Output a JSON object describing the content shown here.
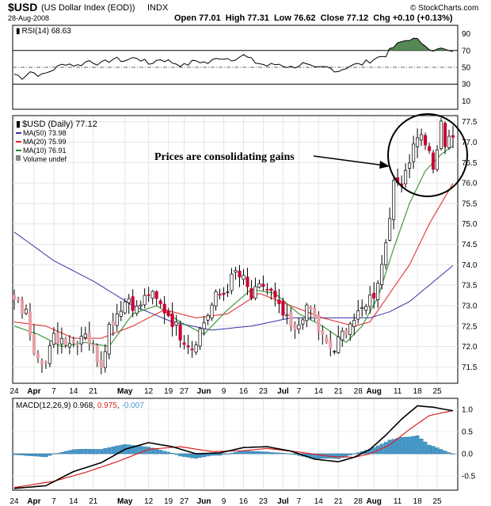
{
  "header": {
    "symbol": "$USD",
    "name": "(US Dollar Index (EOD))",
    "exchange": "INDX",
    "date": "28-Aug-2008",
    "quote": "Open 77.01  High 77.31  Low 76.62  Close 77.12  Chg +0.10 (+0.13%)",
    "credit": "© StockCharts.com"
  },
  "rsi_panel": {
    "label": "RSI(14) 68.63",
    "ticks": [
      90,
      70,
      50,
      30,
      10
    ],
    "ylim": [
      0,
      100
    ]
  },
  "price_panel": {
    "legend": {
      "title": "$USD (Daily) 77.12",
      "ma50": "MA(50) 73.98",
      "ma20": "MA(20) 75.99",
      "ma10": "MA(10) 76.91",
      "volume": "Volume undef"
    },
    "annotation": "Prices are consolidating gains",
    "ticks": [
      77.5,
      77.0,
      76.5,
      76.0,
      75.5,
      75.0,
      74.5,
      74.0,
      73.5,
      73.0,
      72.5,
      72.0,
      71.5
    ],
    "ylim": [
      71.1,
      77.65
    ]
  },
  "macd_panel": {
    "label_prefix": "MACD(12,26,9)",
    "macd_value": "0.968",
    "signal_value": "0.975",
    "hist_value": "-0.007",
    "ticks": [
      "1.0",
      "0.5",
      "0.0",
      "-0.5"
    ],
    "ylim": [
      -0.82,
      1.25
    ]
  },
  "x_axis": {
    "labels": [
      {
        "text": "24",
        "i": 0,
        "bold": false
      },
      {
        "text": "Apr",
        "i": 5,
        "bold": true
      },
      {
        "text": "7",
        "i": 10,
        "bold": false
      },
      {
        "text": "14",
        "i": 15,
        "bold": false
      },
      {
        "text": "21",
        "i": 20,
        "bold": false
      },
      {
        "text": "May",
        "i": 28,
        "bold": true
      },
      {
        "text": "12",
        "i": 34,
        "bold": false
      },
      {
        "text": "19",
        "i": 39,
        "bold": false
      },
      {
        "text": "27",
        "i": 43,
        "bold": false
      },
      {
        "text": "Jun",
        "i": 48,
        "bold": true
      },
      {
        "text": "9",
        "i": 53,
        "bold": false
      },
      {
        "text": "16",
        "i": 58,
        "bold": false
      },
      {
        "text": "23",
        "i": 63,
        "bold": false
      },
      {
        "text": "Jul",
        "i": 68,
        "bold": true
      },
      {
        "text": "7",
        "i": 72,
        "bold": false
      },
      {
        "text": "14",
        "i": 77,
        "bold": false
      },
      {
        "text": "21",
        "i": 82,
        "bold": false
      },
      {
        "text": "28",
        "i": 87,
        "bold": false
      },
      {
        "text": "Aug",
        "i": 91,
        "bold": true
      },
      {
        "text": "11",
        "i": 97,
        "bold": false
      },
      {
        "text": "18",
        "i": 102,
        "bold": false
      },
      {
        "text": "25",
        "i": 107,
        "bold": false
      }
    ]
  },
  "colors": {
    "up": "#ffffff",
    "down": "#cc0033",
    "down_light": "#e8a0a8",
    "ma50": "#3333aa",
    "ma20": "#dd2222",
    "ma10": "#228822",
    "macd": "#000000",
    "signal": "#dd2222",
    "hist": "#4499cc",
    "rsi_fill": "#558855"
  },
  "chart_data": {
    "type": "line",
    "title": "$USD (Daily) 77.12",
    "date_range": [
      "2008-03-24",
      "2008-08-28"
    ],
    "anchors": {
      "close": [
        [
          0,
          73.1
        ],
        [
          3,
          72.8
        ],
        [
          5,
          72.0
        ],
        [
          8,
          71.6
        ],
        [
          10,
          72.2
        ],
        [
          13,
          72.2
        ],
        [
          15,
          72.1
        ],
        [
          18,
          72.4
        ],
        [
          20,
          71.9
        ],
        [
          22,
          71.6
        ],
        [
          24,
          72.5
        ],
        [
          27,
          73.0
        ],
        [
          29,
          73.2
        ],
        [
          31,
          72.9
        ],
        [
          34,
          73.3
        ],
        [
          37,
          73.0
        ],
        [
          39,
          72.8
        ],
        [
          42,
          72.3
        ],
        [
          45,
          72.0
        ],
        [
          47,
          72.4
        ],
        [
          49,
          72.8
        ],
        [
          51,
          73.2
        ],
        [
          53,
          73.3
        ],
        [
          56,
          73.8
        ],
        [
          58,
          73.6
        ],
        [
          60,
          73.2
        ],
        [
          63,
          73.5
        ],
        [
          65,
          73.3
        ],
        [
          67,
          72.9
        ],
        [
          69,
          72.6
        ],
        [
          71,
          72.3
        ],
        [
          73,
          72.8
        ],
        [
          75,
          72.9
        ],
        [
          77,
          72.4
        ],
        [
          79,
          72.0
        ],
        [
          81,
          71.9
        ],
        [
          83,
          72.3
        ],
        [
          85,
          72.6
        ],
        [
          87,
          72.7
        ],
        [
          89,
          73.1
        ],
        [
          91,
          73.3
        ],
        [
          93,
          74.0
        ],
        [
          94,
          74.6
        ],
        [
          95,
          75.3
        ],
        [
          96,
          75.9
        ],
        [
          98,
          76.1
        ],
        [
          100,
          76.6
        ],
        [
          102,
          77.2
        ],
        [
          104,
          77.0
        ],
        [
          106,
          76.3
        ],
        [
          108,
          77.4
        ],
        [
          109,
          77.0
        ],
        [
          110,
          77.2
        ],
        [
          111,
          77.12
        ]
      ],
      "rsi": [
        [
          0,
          42
        ],
        [
          2,
          38
        ],
        [
          4,
          45
        ],
        [
          7,
          40
        ],
        [
          10,
          48
        ],
        [
          13,
          55
        ],
        [
          16,
          52
        ],
        [
          19,
          58
        ],
        [
          22,
          54
        ],
        [
          25,
          60
        ],
        [
          28,
          58
        ],
        [
          31,
          62
        ],
        [
          34,
          54
        ],
        [
          37,
          60
        ],
        [
          40,
          56
        ],
        [
          43,
          52
        ],
        [
          46,
          58
        ],
        [
          49,
          55
        ],
        [
          52,
          62
        ],
        [
          55,
          60
        ],
        [
          58,
          64
        ],
        [
          61,
          56
        ],
        [
          64,
          52
        ],
        [
          67,
          54
        ],
        [
          70,
          50
        ],
        [
          73,
          54
        ],
        [
          76,
          48
        ],
        [
          79,
          50
        ],
        [
          82,
          46
        ],
        [
          85,
          52
        ],
        [
          88,
          54
        ],
        [
          91,
          60
        ],
        [
          94,
          65
        ],
        [
          96,
          74
        ],
        [
          98,
          80
        ],
        [
          100,
          84
        ],
        [
          102,
          82
        ],
        [
          104,
          78
        ],
        [
          106,
          68
        ],
        [
          108,
          73
        ],
        [
          110,
          70
        ],
        [
          111,
          68.63
        ]
      ],
      "ma50": [
        [
          0,
          74.8
        ],
        [
          10,
          74.1
        ],
        [
          20,
          73.6
        ],
        [
          30,
          73.0
        ],
        [
          40,
          72.6
        ],
        [
          50,
          72.4
        ],
        [
          60,
          72.5
        ],
        [
          70,
          72.7
        ],
        [
          80,
          72.7
        ],
        [
          90,
          72.7
        ],
        [
          95,
          72.85
        ],
        [
          100,
          73.1
        ],
        [
          105,
          73.5
        ],
        [
          111,
          73.98
        ]
      ],
      "ma20": [
        [
          0,
          72.6
        ],
        [
          8,
          72.5
        ],
        [
          15,
          72.2
        ],
        [
          22,
          72.2
        ],
        [
          30,
          72.5
        ],
        [
          38,
          72.9
        ],
        [
          46,
          72.7
        ],
        [
          54,
          72.8
        ],
        [
          62,
          73.3
        ],
        [
          70,
          73.0
        ],
        [
          78,
          72.7
        ],
        [
          86,
          72.5
        ],
        [
          90,
          72.6
        ],
        [
          95,
          73.3
        ],
        [
          100,
          74.0
        ],
        [
          105,
          75.0
        ],
        [
          111,
          75.99
        ]
      ],
      "ma10": [
        [
          0,
          72.5
        ],
        [
          6,
          72.3
        ],
        [
          12,
          72.0
        ],
        [
          18,
          72.1
        ],
        [
          24,
          72.0
        ],
        [
          30,
          72.8
        ],
        [
          36,
          73.0
        ],
        [
          42,
          72.6
        ],
        [
          48,
          72.3
        ],
        [
          54,
          72.9
        ],
        [
          60,
          73.4
        ],
        [
          66,
          73.3
        ],
        [
          72,
          72.8
        ],
        [
          78,
          72.5
        ],
        [
          84,
          72.1
        ],
        [
          88,
          72.5
        ],
        [
          92,
          73.2
        ],
        [
          96,
          74.4
        ],
        [
          100,
          75.5
        ],
        [
          104,
          76.3
        ],
        [
          108,
          76.7
        ],
        [
          111,
          76.91
        ]
      ],
      "macd": [
        [
          0,
          -0.78
        ],
        [
          8,
          -0.72
        ],
        [
          15,
          -0.4
        ],
        [
          22,
          -0.2
        ],
        [
          28,
          0.1
        ],
        [
          34,
          0.25
        ],
        [
          40,
          0.16
        ],
        [
          46,
          0.0
        ],
        [
          52,
          0.02
        ],
        [
          58,
          0.14
        ],
        [
          64,
          0.16
        ],
        [
          70,
          0.06
        ],
        [
          76,
          -0.12
        ],
        [
          82,
          -0.18
        ],
        [
          86,
          -0.08
        ],
        [
          90,
          0.1
        ],
        [
          94,
          0.42
        ],
        [
          98,
          0.78
        ],
        [
          102,
          1.08
        ],
        [
          106,
          1.05
        ],
        [
          109,
          1.0
        ],
        [
          111,
          0.968
        ]
      ],
      "signal": [
        [
          0,
          -0.76
        ],
        [
          10,
          -0.62
        ],
        [
          18,
          -0.42
        ],
        [
          26,
          -0.18
        ],
        [
          34,
          0.1
        ],
        [
          42,
          0.16
        ],
        [
          50,
          0.05
        ],
        [
          58,
          0.07
        ],
        [
          64,
          0.12
        ],
        [
          72,
          0.04
        ],
        [
          80,
          -0.06
        ],
        [
          86,
          -0.08
        ],
        [
          90,
          0.0
        ],
        [
          95,
          0.2
        ],
        [
          100,
          0.55
        ],
        [
          105,
          0.86
        ],
        [
          111,
          0.975
        ]
      ]
    }
  }
}
